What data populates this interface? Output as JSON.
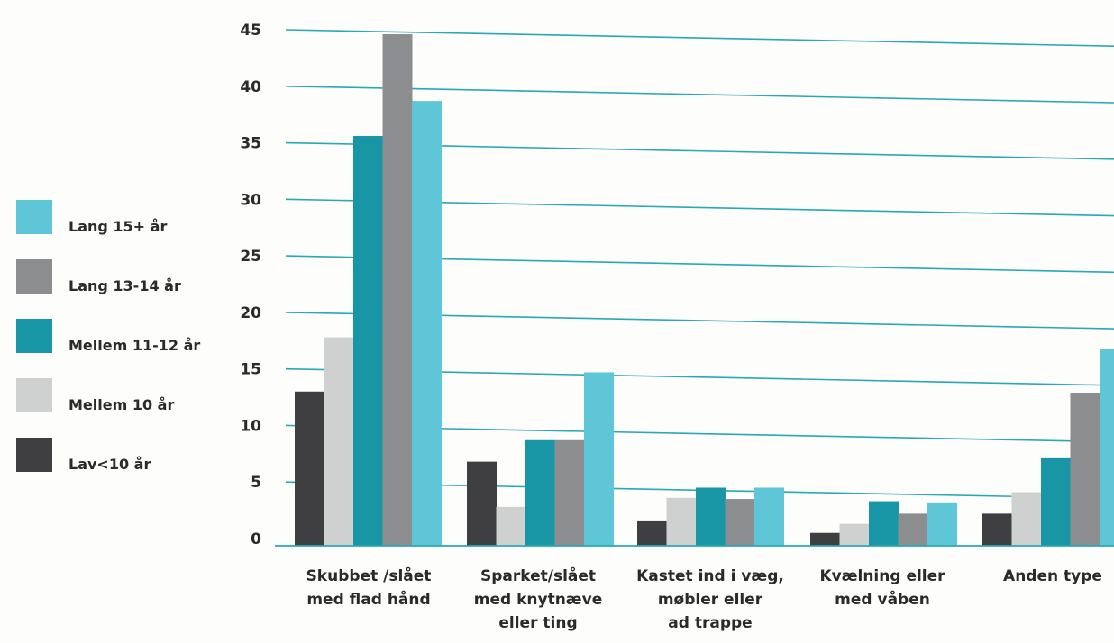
{
  "chart_data": {
    "type": "bar",
    "title": "",
    "xlabel": "",
    "ylabel": "",
    "ylim": [
      0,
      45
    ],
    "yticks": [
      0,
      5,
      10,
      15,
      20,
      25,
      30,
      35,
      40,
      45
    ],
    "grid": true,
    "legend_position": "left",
    "categories": [
      [
        "Skubbet /slået",
        "med flad hånd"
      ],
      [
        "Sparket/slået",
        "med knytnæve",
        "eller ting"
      ],
      [
        "Kastet ind i væg,",
        "møbler eller",
        "ad trappe"
      ],
      [
        "Kvælning eller",
        "med våben"
      ],
      [
        "Anden type"
      ]
    ],
    "series": [
      {
        "name": "Lav<10 år",
        "color": "#3f3f41",
        "values": [
          13,
          6.8,
          1.6,
          0.5,
          2.2
        ]
      },
      {
        "name": "Mellem 10 år",
        "color": "#cfd1d1",
        "values": [
          17.8,
          2.8,
          3.6,
          1.3,
          4.1
        ]
      },
      {
        "name": "Mellem 11-12 år",
        "color": "#1996a5",
        "values": [
          35.6,
          8.7,
          4.5,
          3.3,
          7.1
        ]
      },
      {
        "name": "Lang 13-14 år",
        "color": "#8c8d8e",
        "values": [
          44.6,
          8.7,
          3.5,
          2.2,
          12.9
        ]
      },
      {
        "name": "Lang 15+ år",
        "color": "#5ec6d6",
        "values": [
          38.7,
          14.7,
          4.5,
          3.2,
          16.8
        ]
      }
    ],
    "gridline_color": "#2aa8b6"
  }
}
